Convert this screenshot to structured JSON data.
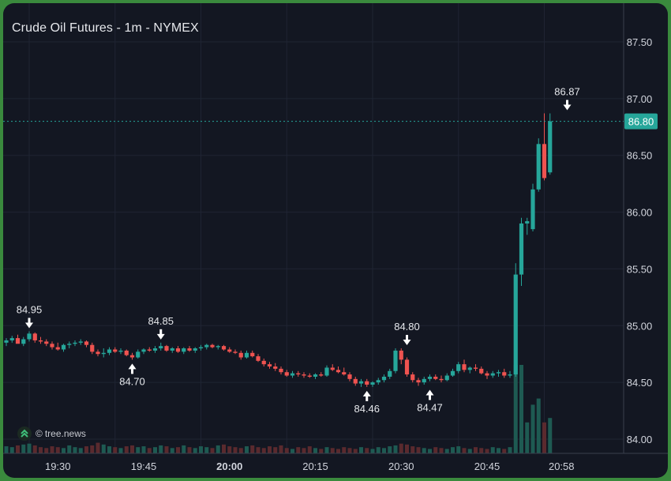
{
  "chart_data": {
    "type": "candlestick",
    "title": "Crude Oil Futures - 1m - NYMEX",
    "watermark": "tree.news",
    "watermark_symbol": "©",
    "ylim": [
      83.9,
      87.75
    ],
    "y_ticks": [
      "87.50",
      "87.00",
      "86.50",
      "86.00",
      "85.50",
      "85.00",
      "84.50",
      "84.00"
    ],
    "x_ticks": [
      {
        "label": "19:30",
        "bar": 9,
        "bold": false
      },
      {
        "label": "19:45",
        "bar": 24,
        "bold": false
      },
      {
        "label": "20:00",
        "bar": 39,
        "bold": true
      },
      {
        "label": "20:15",
        "bar": 54,
        "bold": false
      },
      {
        "label": "20:30",
        "bar": 69,
        "bold": false
      },
      {
        "label": "20:45",
        "bar": 84,
        "bold": false
      },
      {
        "label": "20:58",
        "bar": 97,
        "bold": false
      }
    ],
    "last_price": "86.80",
    "last_price_value": 86.8,
    "colors": {
      "up": "#26a69a",
      "down": "#ef5350",
      "background": "#131722",
      "grid": "#1f2433",
      "text": "#d1d4dc",
      "price_line": "#26a69a",
      "volume_up": "#1e5a52",
      "volume_down": "#5a2a2e"
    },
    "annotations": [
      {
        "label": "84.95",
        "bar": 4,
        "value": 84.95,
        "type": "high"
      },
      {
        "label": "84.70",
        "bar": 22,
        "value": 84.7,
        "type": "low"
      },
      {
        "label": "84.85",
        "bar": 27,
        "value": 84.85,
        "type": "high"
      },
      {
        "label": "84.46",
        "bar": 63,
        "value": 84.46,
        "type": "low"
      },
      {
        "label": "84.80",
        "bar": 70,
        "value": 84.8,
        "type": "high"
      },
      {
        "label": "84.47",
        "bar": 74,
        "value": 84.47,
        "type": "low"
      },
      {
        "label": "86.87",
        "bar": 98,
        "value": 86.87,
        "type": "high"
      }
    ],
    "ohlc": [
      [
        84.85,
        84.89,
        84.82,
        84.87
      ],
      [
        84.87,
        84.91,
        84.85,
        84.89
      ],
      [
        84.89,
        84.92,
        84.86,
        84.84
      ],
      [
        84.84,
        84.9,
        84.82,
        84.88
      ],
      [
        84.88,
        84.95,
        84.86,
        84.93
      ],
      [
        84.93,
        84.94,
        84.85,
        84.87
      ],
      [
        84.87,
        84.9,
        84.84,
        84.86
      ],
      [
        84.86,
        84.88,
        84.82,
        84.84
      ],
      [
        84.84,
        84.86,
        84.79,
        84.81
      ],
      [
        84.81,
        84.85,
        84.78,
        84.79
      ],
      [
        84.79,
        84.84,
        84.77,
        84.83
      ],
      [
        84.83,
        84.86,
        84.8,
        84.84
      ],
      [
        84.84,
        84.87,
        84.82,
        84.85
      ],
      [
        84.85,
        84.88,
        84.83,
        84.86
      ],
      [
        84.86,
        84.87,
        84.81,
        84.83
      ],
      [
        84.83,
        84.85,
        84.75,
        84.77
      ],
      [
        84.77,
        84.79,
        84.73,
        84.75
      ],
      [
        84.75,
        84.8,
        84.72,
        84.76
      ],
      [
        84.76,
        84.81,
        84.74,
        84.79
      ],
      [
        84.79,
        84.81,
        84.76,
        84.77
      ],
      [
        84.77,
        84.8,
        84.75,
        84.78
      ],
      [
        84.78,
        84.79,
        84.73,
        84.74
      ],
      [
        84.74,
        84.76,
        84.7,
        84.72
      ],
      [
        84.72,
        84.79,
        84.71,
        84.77
      ],
      [
        84.77,
        84.8,
        84.75,
        84.79
      ],
      [
        84.79,
        84.81,
        84.77,
        84.78
      ],
      [
        84.78,
        84.82,
        84.76,
        84.8
      ],
      [
        84.8,
        84.85,
        84.78,
        84.82
      ],
      [
        84.82,
        84.83,
        84.77,
        84.78
      ],
      [
        84.78,
        84.81,
        84.76,
        84.8
      ],
      [
        84.8,
        84.82,
        84.76,
        84.77
      ],
      [
        84.77,
        84.81,
        84.75,
        84.8
      ],
      [
        84.8,
        84.82,
        84.77,
        84.78
      ],
      [
        84.78,
        84.81,
        84.76,
        84.8
      ],
      [
        84.8,
        84.83,
        84.78,
        84.81
      ],
      [
        84.81,
        84.84,
        84.79,
        84.83
      ],
      [
        84.83,
        84.84,
        84.8,
        84.81
      ],
      [
        84.81,
        84.83,
        84.79,
        84.82
      ],
      [
        84.82,
        84.83,
        84.78,
        84.79
      ],
      [
        84.79,
        84.81,
        84.76,
        84.77
      ],
      [
        84.77,
        84.79,
        84.75,
        84.76
      ],
      [
        84.76,
        84.78,
        84.7,
        84.72
      ],
      [
        84.72,
        84.78,
        84.71,
        84.76
      ],
      [
        84.76,
        84.78,
        84.72,
        84.73
      ],
      [
        84.73,
        84.75,
        84.68,
        84.69
      ],
      [
        84.69,
        84.71,
        84.64,
        84.66
      ],
      [
        84.66,
        84.68,
        84.62,
        84.64
      ],
      [
        84.64,
        84.67,
        84.6,
        84.62
      ],
      [
        84.62,
        84.64,
        84.57,
        84.59
      ],
      [
        84.59,
        84.61,
        84.55,
        84.56
      ],
      [
        84.56,
        84.6,
        84.54,
        84.58
      ],
      [
        84.58,
        84.6,
        84.55,
        84.57
      ],
      [
        84.57,
        84.59,
        84.54,
        84.56
      ],
      [
        84.56,
        84.58,
        84.54,
        84.55
      ],
      [
        84.55,
        84.58,
        84.53,
        84.57
      ],
      [
        84.57,
        84.59,
        84.55,
        84.56
      ],
      [
        84.56,
        84.65,
        84.55,
        84.63
      ],
      [
        84.63,
        84.66,
        84.6,
        84.61
      ],
      [
        84.61,
        84.64,
        84.58,
        84.59
      ],
      [
        84.59,
        84.63,
        84.56,
        84.57
      ],
      [
        84.57,
        84.59,
        84.51,
        84.53
      ],
      [
        84.53,
        84.55,
        84.47,
        84.49
      ],
      [
        84.49,
        84.53,
        84.46,
        84.51
      ],
      [
        84.51,
        84.53,
        84.46,
        84.48
      ],
      [
        84.48,
        84.51,
        84.46,
        84.5
      ],
      [
        84.5,
        84.54,
        84.48,
        84.52
      ],
      [
        84.52,
        84.57,
        84.5,
        84.55
      ],
      [
        84.55,
        84.62,
        84.53,
        84.6
      ],
      [
        84.6,
        84.8,
        84.58,
        84.78
      ],
      [
        84.78,
        84.8,
        84.66,
        84.7
      ],
      [
        84.7,
        84.72,
        84.55,
        84.57
      ],
      [
        84.57,
        84.59,
        84.5,
        84.52
      ],
      [
        84.52,
        84.54,
        84.47,
        84.5
      ],
      [
        84.5,
        84.55,
        84.48,
        84.53
      ],
      [
        84.53,
        84.57,
        84.51,
        84.55
      ],
      [
        84.55,
        84.57,
        84.52,
        84.53
      ],
      [
        84.53,
        84.56,
        84.5,
        84.52
      ],
      [
        84.52,
        84.58,
        84.51,
        84.56
      ],
      [
        84.56,
        84.62,
        84.55,
        84.6
      ],
      [
        84.6,
        84.68,
        84.58,
        84.66
      ],
      [
        84.66,
        84.7,
        84.59,
        84.61
      ],
      [
        84.61,
        84.64,
        84.58,
        84.63
      ],
      [
        84.63,
        84.66,
        84.6,
        84.62
      ],
      [
        84.62,
        84.64,
        84.57,
        84.58
      ],
      [
        84.58,
        84.6,
        84.53,
        84.56
      ],
      [
        84.56,
        84.6,
        84.54,
        84.58
      ],
      [
        84.58,
        84.61,
        84.55,
        84.59
      ],
      [
        84.59,
        84.62,
        84.54,
        84.56
      ],
      [
        84.56,
        84.6,
        84.54,
        84.57
      ],
      [
        84.57,
        85.55,
        84.55,
        85.45
      ],
      [
        85.45,
        85.95,
        85.35,
        85.9
      ],
      [
        85.9,
        85.95,
        85.8,
        85.92
      ],
      [
        85.85,
        86.25,
        85.83,
        86.2
      ],
      [
        86.2,
        86.65,
        86.18,
        86.6
      ],
      [
        86.6,
        86.87,
        86.28,
        86.3
      ],
      [
        86.35,
        86.87,
        86.33,
        86.8
      ]
    ],
    "volume": [
      0.08,
      0.07,
      0.09,
      0.1,
      0.11,
      0.09,
      0.07,
      0.06,
      0.08,
      0.07,
      0.06,
      0.09,
      0.07,
      0.06,
      0.08,
      0.09,
      0.12,
      0.1,
      0.08,
      0.07,
      0.06,
      0.08,
      0.09,
      0.07,
      0.08,
      0.06,
      0.07,
      0.09,
      0.08,
      0.06,
      0.07,
      0.09,
      0.07,
      0.06,
      0.08,
      0.07,
      0.06,
      0.09,
      0.1,
      0.08,
      0.07,
      0.06,
      0.08,
      0.09,
      0.07,
      0.06,
      0.08,
      0.07,
      0.09,
      0.06,
      0.05,
      0.07,
      0.06,
      0.08,
      0.06,
      0.05,
      0.07,
      0.06,
      0.05,
      0.07,
      0.06,
      0.05,
      0.07,
      0.06,
      0.05,
      0.07,
      0.06,
      0.08,
      0.09,
      0.11,
      0.1,
      0.08,
      0.07,
      0.06,
      0.05,
      0.07,
      0.06,
      0.05,
      0.07,
      0.08,
      0.06,
      0.05,
      0.07,
      0.06,
      0.05,
      0.07,
      0.06,
      0.05,
      0.07,
      1.0,
      1.0,
      0.35,
      0.55,
      0.62,
      0.35,
      0.4
    ]
  }
}
